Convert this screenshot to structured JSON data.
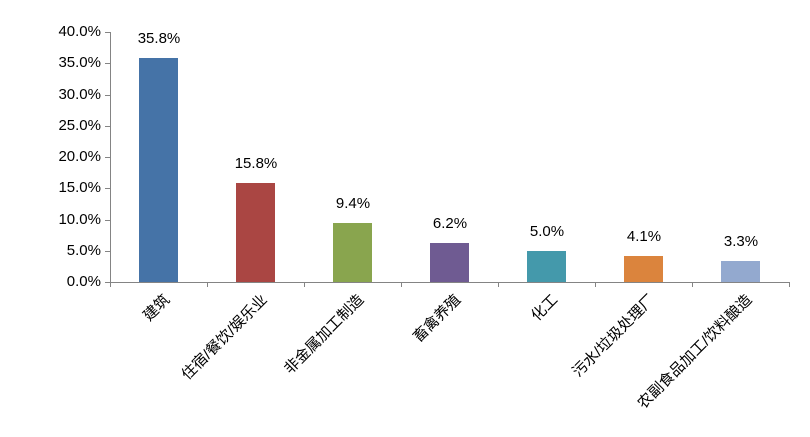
{
  "chart_data": {
    "type": "bar",
    "title": "",
    "xlabel": "",
    "ylabel": "",
    "categories": [
      "建筑",
      "住宿/餐饮/娱乐业",
      "非金属加工制造",
      "畜禽养殖",
      "化工",
      "污水/垃圾处理厂",
      "农副食品加工/饮料酿造"
    ],
    "values": [
      35.8,
      15.8,
      9.4,
      6.2,
      5.0,
      4.1,
      3.3
    ],
    "value_labels": [
      "35.8%",
      "15.8%",
      "9.4%",
      "6.2%",
      "5.0%",
      "4.1%",
      "3.3%"
    ],
    "bar_colors": [
      "#4573A7",
      "#AA4643",
      "#89A54E",
      "#6F5B92",
      "#4499AB",
      "#DB843D",
      "#93A9CF"
    ],
    "ylim": [
      0,
      40
    ],
    "y_tick_step": 5,
    "y_tick_labels": [
      "0.0%",
      "5.0%",
      "10.0%",
      "15.0%",
      "20.0%",
      "25.0%",
      "30.0%",
      "35.0%",
      "40.0%"
    ],
    "grid": false,
    "legend": "none",
    "axis_color": "#848484",
    "text_color": "#000000",
    "background": "#FFFFFF"
  }
}
